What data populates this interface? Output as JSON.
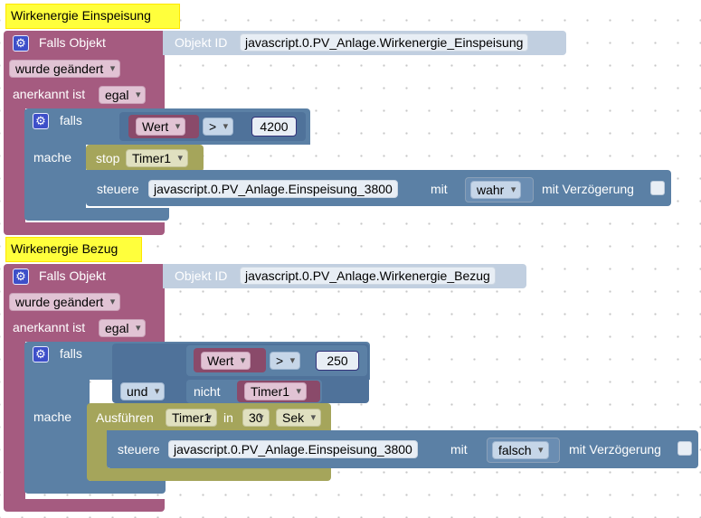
{
  "scripts": [
    {
      "comment": "Wirkenergie Einspeisung",
      "trigger_label": "Falls Objekt",
      "object_id_label": "Objekt ID",
      "object_id": "javascript.0.PV_Anlage.Wirkenergie_Einspeisung",
      "changed": "wurde geändert",
      "ack_label": "anerkannt ist",
      "ack_value": "egal",
      "if_label": "falls",
      "do_label": "mache",
      "cond_var": "Wert",
      "cond_op": ">",
      "cond_value": "4200",
      "stop_label": "stop",
      "stop_timer": "Timer1",
      "control_label": "steuere",
      "control_id": "javascript.0.PV_Anlage.Einspeisung_3800",
      "with_label": "mit",
      "control_value": "wahr",
      "delay_label": "mit Verzögerung"
    },
    {
      "comment": "Wirkenergie Bezug",
      "trigger_label": "Falls Objekt",
      "object_id_label": "Objekt ID",
      "object_id": "javascript.0.PV_Anlage.Wirkenergie_Bezug",
      "changed": "wurde geändert",
      "ack_label": "anerkannt ist",
      "ack_value": "egal",
      "if_label": "falls",
      "do_label": "mache",
      "cond_var": "Wert",
      "cond_op": ">",
      "cond_value": "250",
      "and_op": "und",
      "not_label": "nicht",
      "not_timer": "Timer1",
      "exec_label": "Ausführen",
      "exec_timer": "Timer1",
      "in_label": "in",
      "exec_delay": "30",
      "exec_unit": "Sek",
      "control_label": "steuere",
      "control_id": "javascript.0.PV_Anlage.Einspeisung_3800",
      "with_label": "mit",
      "control_value": "falsch",
      "delay_label": "mit Verzögerung"
    }
  ],
  "colors": {
    "trigger": "#a55b80",
    "logic": "#5b80a5",
    "timer": "#a5a55b",
    "comment": "#ffff3c"
  }
}
